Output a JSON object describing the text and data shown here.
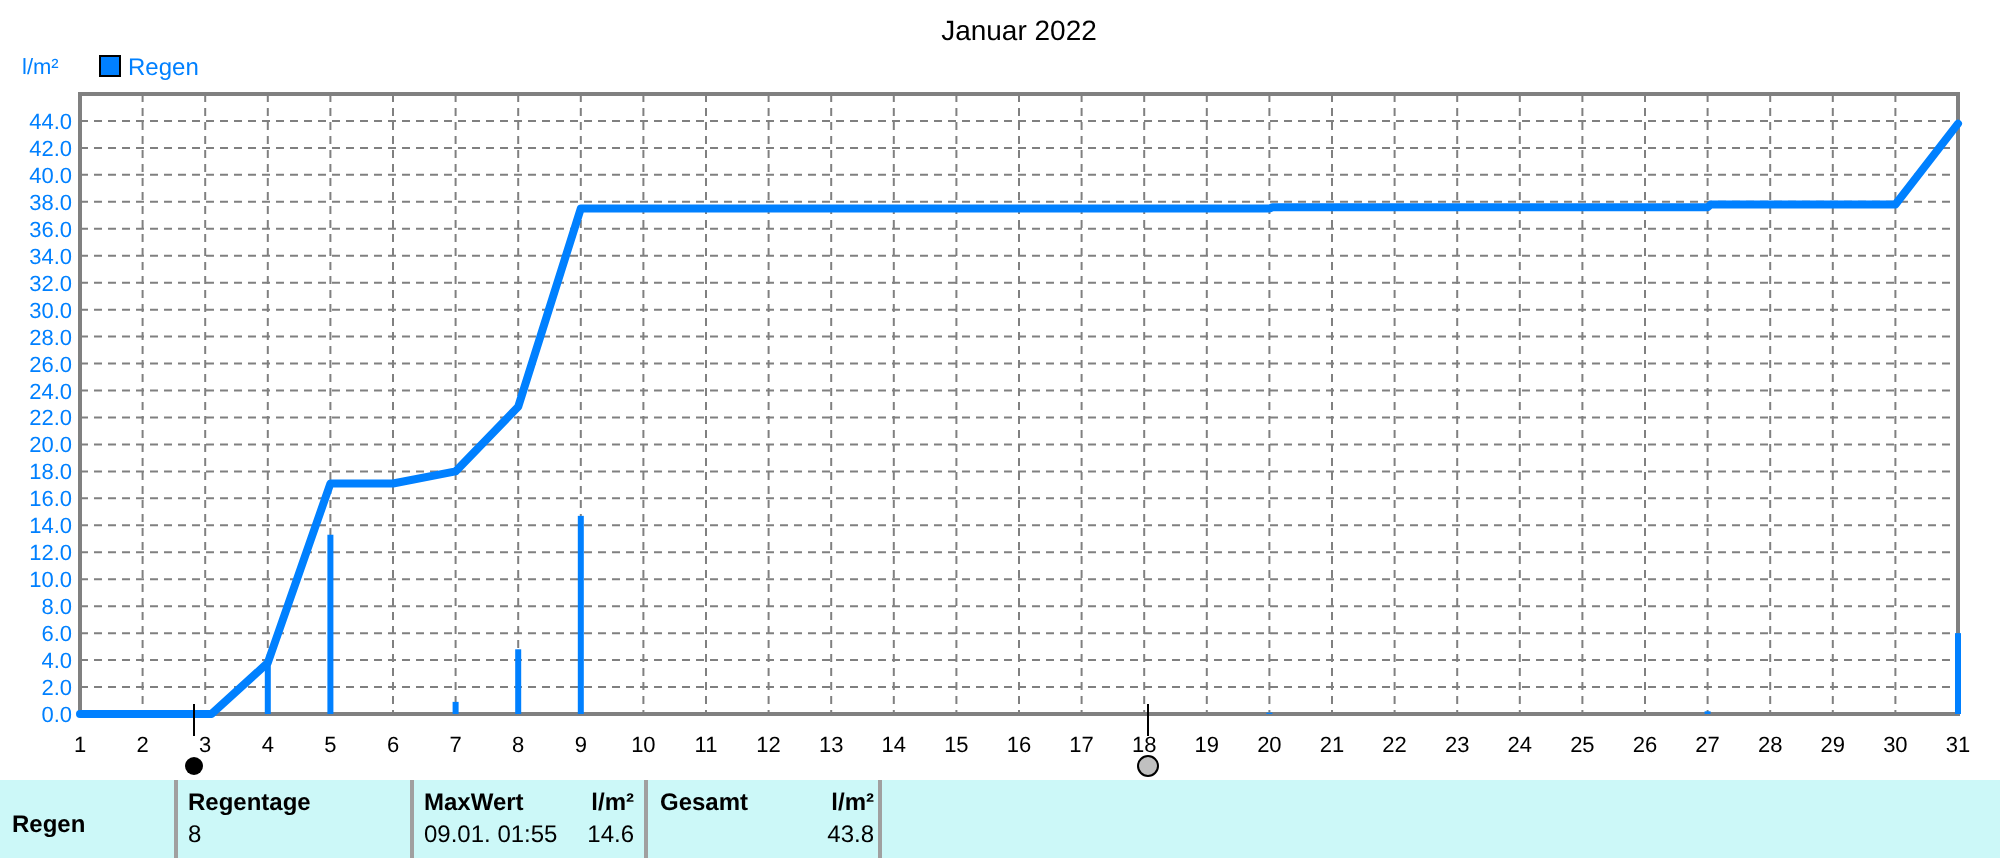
{
  "chart_data": {
    "type": "line",
    "title": "Januar 2022",
    "ylabel": "l/m²",
    "xlim": [
      1,
      31
    ],
    "xticks": [
      1,
      2,
      3,
      4,
      5,
      6,
      7,
      8,
      9,
      10,
      11,
      12,
      13,
      14,
      15,
      16,
      17,
      18,
      19,
      20,
      21,
      22,
      23,
      24,
      25,
      26,
      27,
      28,
      29,
      30,
      31
    ],
    "ylim": [
      0,
      46
    ],
    "yticks": [
      {
        "value": 0,
        "label": "0.0"
      },
      {
        "value": 2,
        "label": "2.0"
      },
      {
        "value": 4,
        "label": "4.0"
      },
      {
        "value": 6,
        "label": "6.0"
      },
      {
        "value": 8,
        "label": "8.0"
      },
      {
        "value": 10,
        "label": "10.0"
      },
      {
        "value": 12,
        "label": "12.0"
      },
      {
        "value": 14,
        "label": "14.0"
      },
      {
        "value": 16,
        "label": "16.0"
      },
      {
        "value": 18,
        "label": "18.0"
      },
      {
        "value": 20,
        "label": "20.0"
      },
      {
        "value": 22,
        "label": "22.0"
      },
      {
        "value": 24,
        "label": "24.0"
      },
      {
        "value": 26,
        "label": "26.0"
      },
      {
        "value": 28,
        "label": "28.0"
      },
      {
        "value": 30,
        "label": "30.0"
      },
      {
        "value": 32,
        "label": "32.0"
      },
      {
        "value": 34,
        "label": "34.0"
      },
      {
        "value": 36,
        "label": "36.0"
      },
      {
        "value": 38,
        "label": "38.0"
      },
      {
        "value": 40,
        "label": "40.0"
      },
      {
        "value": 42,
        "label": "42.0"
      },
      {
        "value": 44,
        "label": "44.0"
      }
    ],
    "grid": true,
    "legend": "top left",
    "series": [
      {
        "color": "#0080ff",
        "x": [
          1,
          2,
          3,
          3.1,
          4,
          5,
          6,
          7,
          8,
          9,
          20,
          20.05,
          27,
          27.05,
          30,
          31
        ],
        "values": [
          0,
          0,
          0,
          0,
          3.8,
          17.1,
          17.1,
          18.0,
          22.8,
          37.5,
          37.5,
          37.6,
          37.6,
          37.8,
          37.8,
          43.8
        ]
      },
      {
        "type": "bar",
        "name": "Regen",
        "color": "#0080ff",
        "x": [
          4,
          5,
          7,
          8,
          9,
          20,
          27,
          31
        ],
        "values": [
          3.8,
          13.3,
          0.9,
          4.8,
          14.7,
          0.1,
          0.2,
          6.0
        ]
      }
    ],
    "annotations": [
      "Regen",
      "Regentage",
      "8",
      "MaxWert",
      "l/m²",
      "09.01.  01:55",
      "14.6",
      "Gesamt",
      "l/m²",
      "43.8"
    ]
  }
}
